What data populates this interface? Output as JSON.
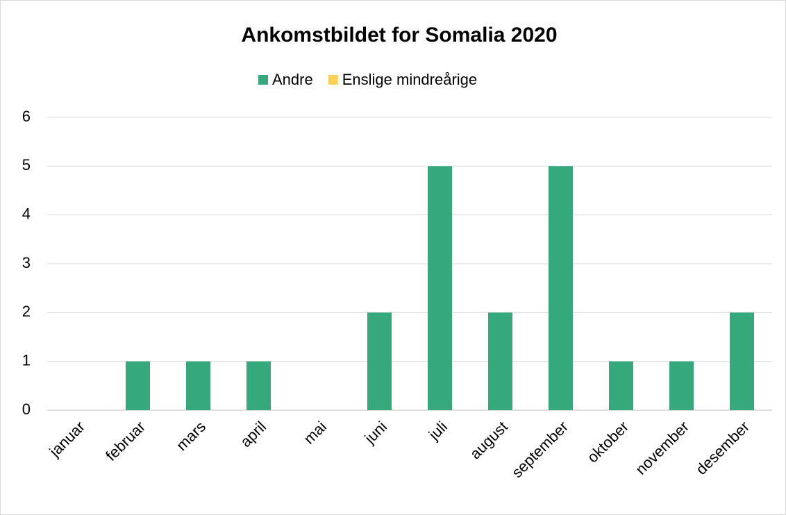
{
  "chart_data": {
    "type": "bar",
    "stacked": true,
    "title": "Ankomstbildet for Somalia 2020",
    "categories": [
      "januar",
      "februar",
      "mars",
      "april",
      "mai",
      "juni",
      "juli",
      "august",
      "september",
      "oktober",
      "november",
      "desember"
    ],
    "series": [
      {
        "name": "Andre",
        "color": "#35a97c",
        "values": [
          0,
          1,
          1,
          1,
          0,
          2,
          5,
          2,
          5,
          1,
          1,
          2
        ]
      },
      {
        "name": "Enslige mindreårige",
        "color": "#fdd055",
        "values": [
          0,
          0,
          0,
          0,
          0,
          0,
          0,
          0,
          0,
          0,
          0,
          0
        ]
      }
    ],
    "ylim": [
      0,
      6
    ],
    "yticks": [
      0,
      1,
      2,
      3,
      4,
      5,
      6
    ],
    "grid": true,
    "legend": "top"
  }
}
